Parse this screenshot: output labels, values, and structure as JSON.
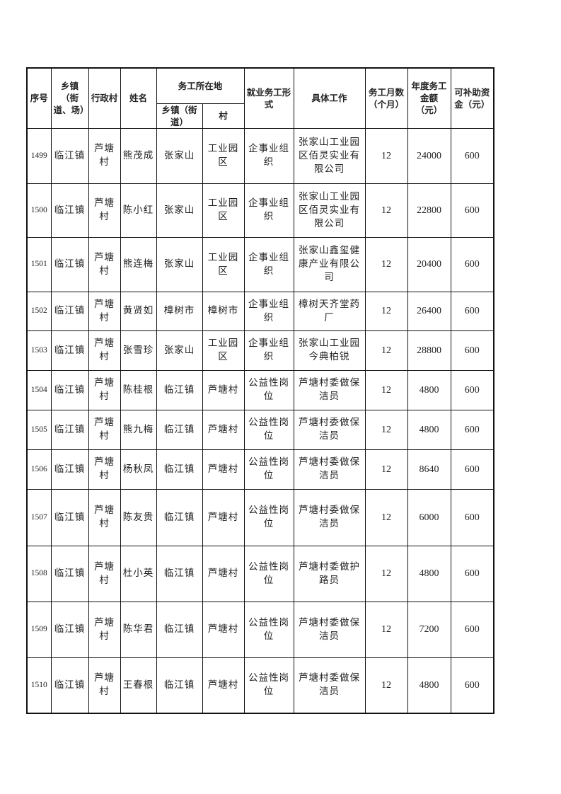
{
  "headers": {
    "index": "序号",
    "township": "乡镇（街道、场）",
    "village": "行政村",
    "name": "姓名",
    "work_location": "务工所在地",
    "work_township": "乡镇（街道）",
    "work_village": "村",
    "employment_form": "就业务工形式",
    "job": "具体工作",
    "months": "务工月数（个月）",
    "annual_amount": "年度务工金额（元）",
    "subsidy": "可补助资金（元）"
  },
  "rows": [
    {
      "index": "1499",
      "township": "临江镇",
      "village": "芦塘村",
      "name": "熊茂成",
      "work_township": "张家山",
      "work_village": "工业园区",
      "form": "企事业组织",
      "job": "张家山工业园区佰灵实业有限公司",
      "months": "12",
      "amount": "24000",
      "subsidy": "600"
    },
    {
      "index": "1500",
      "township": "临江镇",
      "village": "芦塘村",
      "name": "陈小红",
      "work_township": "张家山",
      "work_village": "工业园区",
      "form": "企事业组织",
      "job": "张家山工业园区佰灵实业有限公司",
      "months": "12",
      "amount": "22800",
      "subsidy": "600"
    },
    {
      "index": "1501",
      "township": "临江镇",
      "village": "芦塘村",
      "name": "熊连梅",
      "work_township": "张家山",
      "work_village": "工业园区",
      "form": "企事业组织",
      "job": "张家山鑫玺健康产业有限公司",
      "months": "12",
      "amount": "20400",
      "subsidy": "600"
    },
    {
      "index": "1502",
      "township": "临江镇",
      "village": "芦塘村",
      "name": "黄贤如",
      "work_township": "樟树市",
      "work_village": "樟树市",
      "form": "企事业组织",
      "job": "樟树天齐堂药厂",
      "months": "12",
      "amount": "26400",
      "subsidy": "600"
    },
    {
      "index": "1503",
      "township": "临江镇",
      "village": "芦塘村",
      "name": "张雪珍",
      "work_township": "张家山",
      "work_village": "工业园区",
      "form": "企事业组织",
      "job": "张家山工业园今典柏锐",
      "months": "12",
      "amount": "28800",
      "subsidy": "600"
    },
    {
      "index": "1504",
      "township": "临江镇",
      "village": "芦塘村",
      "name": "陈桂根",
      "work_township": "临江镇",
      "work_village": "芦塘村",
      "form": "公益性岗位",
      "job": "芦塘村委做保洁员",
      "months": "12",
      "amount": "4800",
      "subsidy": "600"
    },
    {
      "index": "1505",
      "township": "临江镇",
      "village": "芦塘村",
      "name": "熊九梅",
      "work_township": "临江镇",
      "work_village": "芦塘村",
      "form": "公益性岗位",
      "job": "芦塘村委做保洁员",
      "months": "12",
      "amount": "4800",
      "subsidy": "600"
    },
    {
      "index": "1506",
      "township": "临江镇",
      "village": "芦塘村",
      "name": "杨秋凤",
      "work_township": "临江镇",
      "work_village": "芦塘村",
      "form": "公益性岗位",
      "job": "芦塘村委做保洁员",
      "months": "12",
      "amount": "8640",
      "subsidy": "600"
    },
    {
      "index": "1507",
      "township": "临江镇",
      "village": "芦塘村",
      "name": "陈友贵",
      "work_township": "临江镇",
      "work_village": "芦塘村",
      "form": "公益性岗位",
      "job": "芦塘村委做保洁员",
      "months": "12",
      "amount": "6000",
      "subsidy": "600"
    },
    {
      "index": "1508",
      "township": "临江镇",
      "village": "芦塘村",
      "name": "杜小英",
      "work_township": "临江镇",
      "work_village": "芦塘村",
      "form": "公益性岗位",
      "job": "芦塘村委做护路员",
      "months": "12",
      "amount": "4800",
      "subsidy": "600"
    },
    {
      "index": "1509",
      "township": "临江镇",
      "village": "芦塘村",
      "name": "陈华君",
      "work_township": "临江镇",
      "work_village": "芦塘村",
      "form": "公益性岗位",
      "job": "芦塘村委做保洁员",
      "months": "12",
      "amount": "7200",
      "subsidy": "600"
    },
    {
      "index": "1510",
      "township": "临江镇",
      "village": "芦塘村",
      "name": "王春根",
      "work_township": "临江镇",
      "work_village": "芦塘村",
      "form": "公益性岗位",
      "job": "芦塘村委做保洁员",
      "months": "12",
      "amount": "4800",
      "subsidy": "600"
    }
  ]
}
